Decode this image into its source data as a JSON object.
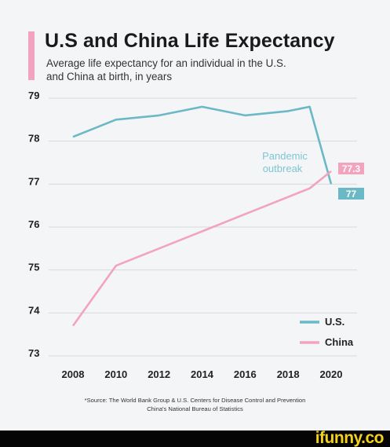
{
  "header": {
    "title": "U.S and China Life Expectancy",
    "subtitle": "Average life expectancy for an individual in the U.S. and China at birth, in years"
  },
  "colors": {
    "accent_bar": "#f2a3bd",
    "us": "#6bb8c6",
    "china": "#f2a3bd",
    "annotation": "#7fc6d3",
    "grid": "#d7d9dd"
  },
  "chart_data": {
    "type": "line",
    "title": "U.S and China Life Expectancy",
    "subtitle": "Average life expectancy for an individual in the U.S. and China at birth, in years",
    "xlabel": "",
    "ylabel": "",
    "xlim": [
      2008,
      2020
    ],
    "ylim": [
      73,
      79
    ],
    "x_ticks": [
      "2008",
      "2010",
      "2012",
      "2014",
      "2016",
      "2018",
      "2020"
    ],
    "y_ticks": [
      "73",
      "74",
      "75",
      "76",
      "77",
      "78",
      "79"
    ],
    "grid": true,
    "legend_position": "bottom-right",
    "series": [
      {
        "name": "U.S.",
        "color": "#6bb8c6",
        "x": [
          2008,
          2010,
          2012,
          2014,
          2016,
          2018,
          2019,
          2020
        ],
        "y": [
          78.1,
          78.5,
          78.6,
          78.8,
          78.6,
          78.7,
          78.8,
          77.0
        ],
        "end_label": "77"
      },
      {
        "name": "China",
        "color": "#f2a3bd",
        "x": [
          2008,
          2010,
          2012,
          2014,
          2016,
          2018,
          2019,
          2020
        ],
        "y": [
          73.7,
          75.1,
          75.5,
          75.9,
          76.3,
          76.7,
          76.9,
          77.3
        ],
        "end_label": "77.3"
      }
    ],
    "annotations": [
      {
        "text_line1": "Pandemic",
        "text_line2": "outbreak"
      }
    ]
  },
  "source": {
    "line1": "*Source: The World Bank Group & U.S. Centers for Disease Control and Prevention",
    "line2": "China's National Bureau of Statistics"
  },
  "footer": {
    "brand": "ifunny.co"
  }
}
